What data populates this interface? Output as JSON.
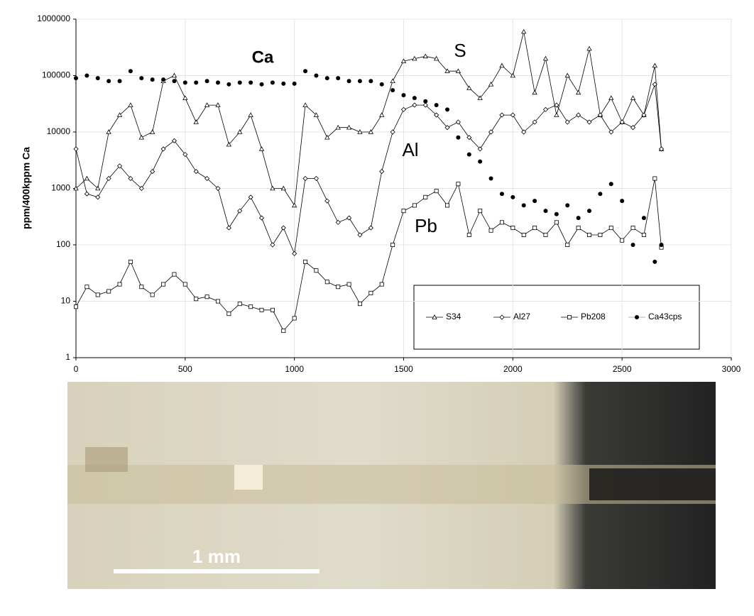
{
  "chart_data": {
    "type": "line",
    "y_label": "ppm/400kppm Ca",
    "log_scale": true,
    "grid": true,
    "legend_position": "lower right",
    "annotations": [
      "Ca",
      "S",
      "Al",
      "Pb"
    ],
    "scale_bar_label": "1 mm",
    "xlim": [
      0,
      3000
    ],
    "xticks": [
      0,
      500,
      1000,
      1500,
      2000,
      2500,
      3000
    ],
    "ylim": [
      1,
      1000000
    ],
    "yticks": [
      1,
      10,
      100,
      1000,
      10000,
      100000,
      1000000
    ],
    "x": [
      0,
      50,
      100,
      150,
      200,
      250,
      300,
      350,
      400,
      450,
      500,
      550,
      600,
      650,
      700,
      750,
      800,
      850,
      900,
      950,
      1000,
      1050,
      1100,
      1150,
      1200,
      1250,
      1300,
      1350,
      1400,
      1450,
      1500,
      1550,
      1600,
      1650,
      1700,
      1750,
      1800,
      1850,
      1900,
      1950,
      2000,
      2050,
      2100,
      2150,
      2200,
      2250,
      2300,
      2350,
      2400,
      2450,
      2500,
      2550,
      2600,
      2650,
      2680
    ],
    "series": [
      {
        "name": "S34",
        "color": "#000000",
        "marker": "triangle",
        "values": [
          1000,
          1500,
          1000,
          10000,
          20000,
          30000,
          8000,
          10000,
          80000,
          100000,
          40000,
          15000,
          30000,
          30000,
          6000,
          10000,
          20000,
          5000,
          1000,
          1000,
          500,
          30000,
          20000,
          8000,
          12000,
          12000,
          10000,
          10000,
          20000,
          80000,
          180000,
          200000,
          220000,
          200000,
          120000,
          120000,
          60000,
          40000,
          70000,
          150000,
          100000,
          600000,
          50000,
          200000,
          20000,
          100000,
          50000,
          300000,
          20000,
          40000,
          15000,
          40000,
          20000,
          150000,
          5000
        ]
      },
      {
        "name": "Al27",
        "color": "#000000",
        "marker": "diamond",
        "values": [
          5000,
          800,
          700,
          1500,
          2500,
          1500,
          1000,
          2000,
          5000,
          7000,
          4000,
          2000,
          1500,
          1000,
          200,
          400,
          700,
          300,
          100,
          200,
          70,
          1500,
          1500,
          600,
          250,
          300,
          150,
          200,
          2000,
          10000,
          25000,
          30000,
          30000,
          20000,
          12000,
          15000,
          8000,
          5000,
          10000,
          20000,
          20000,
          10000,
          15000,
          25000,
          30000,
          15000,
          20000,
          15000,
          20000,
          10000,
          15000,
          12000,
          20000,
          70000,
          5000
        ]
      },
      {
        "name": "Pb208",
        "color": "#000000",
        "marker": "square",
        "values": [
          8,
          18,
          13,
          15,
          20,
          50,
          18,
          13,
          20,
          30,
          20,
          11,
          12,
          10,
          6,
          9,
          8,
          7,
          7,
          3,
          5,
          50,
          35,
          22,
          18,
          20,
          9,
          14,
          20,
          100,
          400,
          500,
          700,
          900,
          500,
          1200,
          150,
          400,
          180,
          250,
          200,
          150,
          200,
          150,
          250,
          100,
          200,
          150,
          150,
          200,
          120,
          200,
          150,
          1500,
          90
        ]
      },
      {
        "name": "Ca43cps",
        "color": "#000000",
        "marker": "dot",
        "values": [
          90000,
          100000,
          90000,
          80000,
          80000,
          120000,
          90000,
          85000,
          85000,
          80000,
          75000,
          75000,
          80000,
          75000,
          70000,
          75000,
          75000,
          70000,
          75000,
          72000,
          72000,
          120000,
          100000,
          90000,
          90000,
          80000,
          80000,
          80000,
          70000,
          55000,
          45000,
          40000,
          35000,
          30000,
          25000,
          8000,
          4000,
          3000,
          1500,
          800,
          700,
          500,
          600,
          400,
          350,
          500,
          300,
          400,
          800,
          1200,
          600,
          100,
          300,
          50,
          100
        ]
      }
    ]
  }
}
